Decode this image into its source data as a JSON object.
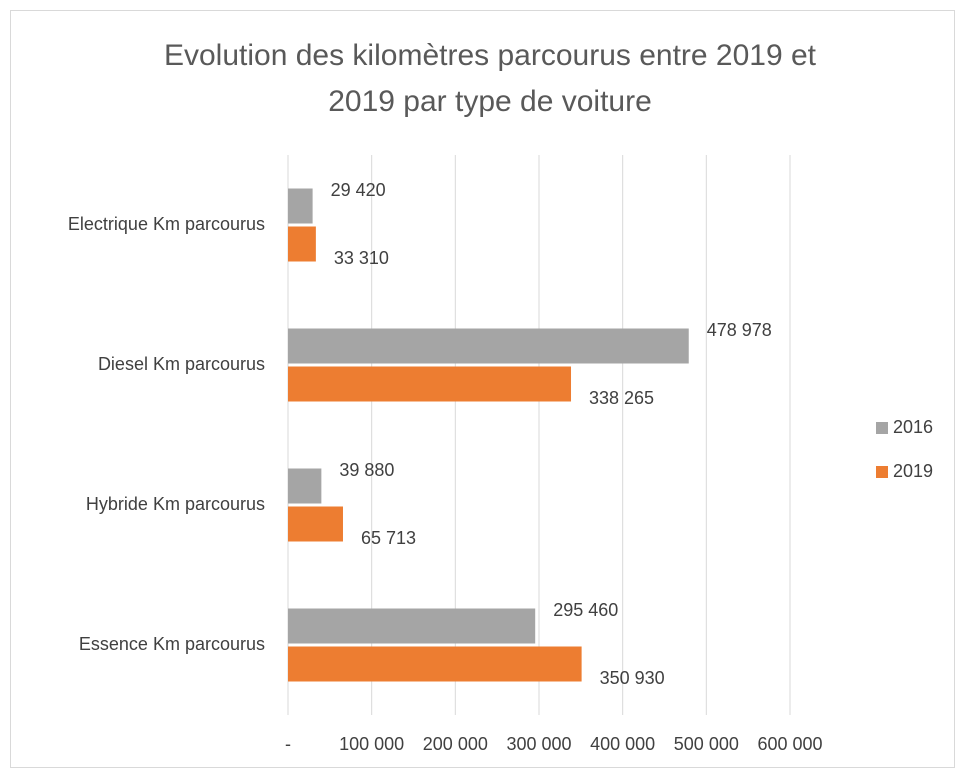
{
  "chart_data": {
    "type": "hbar",
    "title": [
      "Evolution des kilomètres parcourus entre 2019 et",
      "2019 par type de voiture"
    ],
    "categories": [
      "Electrique Km parcourus",
      "Diesel Km parcourus",
      "Hybride Km parcourus",
      "Essence Km parcourus"
    ],
    "series": [
      {
        "name": "2016",
        "color": "#a5a5a5",
        "values": [
          29420,
          478978,
          39880,
          295460
        ],
        "value_labels": [
          "29 420",
          "478 978",
          "39 880",
          "295 460"
        ]
      },
      {
        "name": "2019",
        "color": "#ed7d31",
        "values": [
          33310,
          338265,
          65713,
          350930
        ],
        "value_labels": [
          "33 310",
          "338 265",
          "65 713",
          "350 930"
        ]
      }
    ],
    "xlim": [
      0,
      600000
    ],
    "xticks": [
      {
        "value": 0,
        "label": "-"
      },
      {
        "value": 100000,
        "label": "100 000"
      },
      {
        "value": 200000,
        "label": "200 000"
      },
      {
        "value": 300000,
        "label": "300 000"
      },
      {
        "value": 400000,
        "label": "400 000"
      },
      {
        "value": 500000,
        "label": "500 000"
      },
      {
        "value": 600000,
        "label": "600 000"
      }
    ],
    "grid": true,
    "legend": "right"
  }
}
